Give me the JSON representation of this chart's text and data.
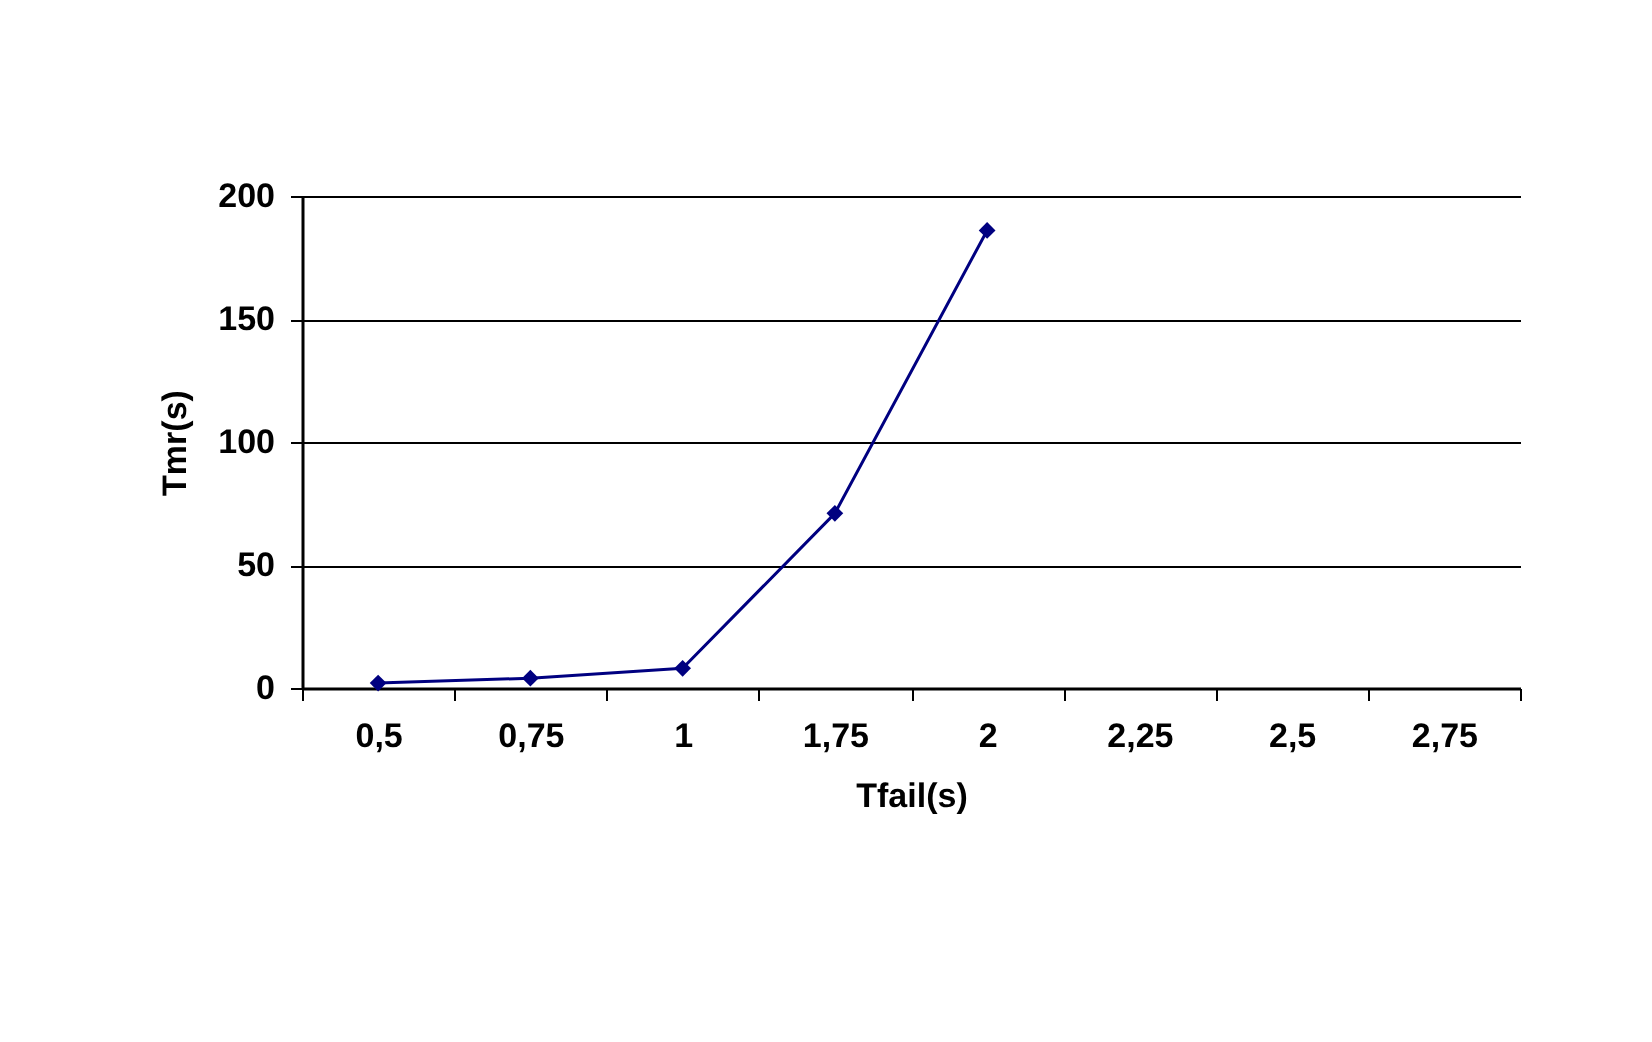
{
  "chart_data": {
    "type": "line",
    "xlabel": "Tfail(s)",
    "ylabel": "Tmr(s)",
    "categories": [
      "0,5",
      "0,75",
      "1",
      "1,75",
      "2",
      "2,25",
      "2,5",
      "2,75"
    ],
    "series": [
      {
        "color": "#000080",
        "values": [
          2,
          4,
          8,
          71,
          186,
          null,
          null,
          null
        ]
      }
    ],
    "ylim": [
      0,
      200
    ],
    "yticks": [
      0,
      50,
      100,
      150,
      200
    ],
    "grid": "y",
    "legend": false,
    "marker": "diamond",
    "line_style": "solid"
  }
}
